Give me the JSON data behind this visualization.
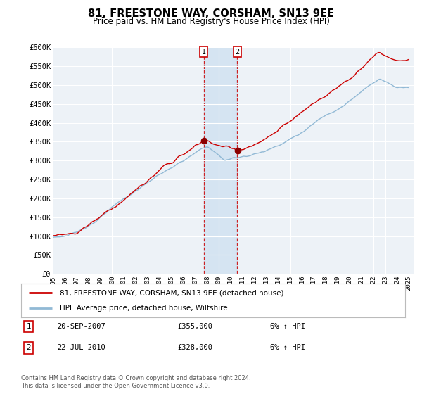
{
  "title": "81, FREESTONE WAY, CORSHAM, SN13 9EE",
  "subtitle": "Price paid vs. HM Land Registry's House Price Index (HPI)",
  "ylabel_ticks": [
    "£0",
    "£50K",
    "£100K",
    "£150K",
    "£200K",
    "£250K",
    "£300K",
    "£350K",
    "£400K",
    "£450K",
    "£500K",
    "£550K",
    "£600K"
  ],
  "ytick_values": [
    0,
    50000,
    100000,
    150000,
    200000,
    250000,
    300000,
    350000,
    400000,
    450000,
    500000,
    550000,
    600000
  ],
  "hpi_color": "#91b9d5",
  "property_color": "#cc0000",
  "sale1_date": "20-SEP-2007",
  "sale1_price": 355000,
  "sale1_hpi": "6% ↑ HPI",
  "sale2_date": "22-JUL-2010",
  "sale2_price": 328000,
  "sale2_hpi": "6% ↑ HPI",
  "legend_property": "81, FREESTONE WAY, CORSHAM, SN13 9EE (detached house)",
  "legend_hpi": "HPI: Average price, detached house, Wiltshire",
  "footer": "Contains HM Land Registry data © Crown copyright and database right 2024.\nThis data is licensed under the Open Government Licence v3.0.",
  "background_color": "#ffffff",
  "plot_bg_color": "#edf2f7",
  "grid_color": "#ffffff",
  "sale1_x": 2007.72,
  "sale2_x": 2010.55,
  "shade_color": "#ccdff0"
}
